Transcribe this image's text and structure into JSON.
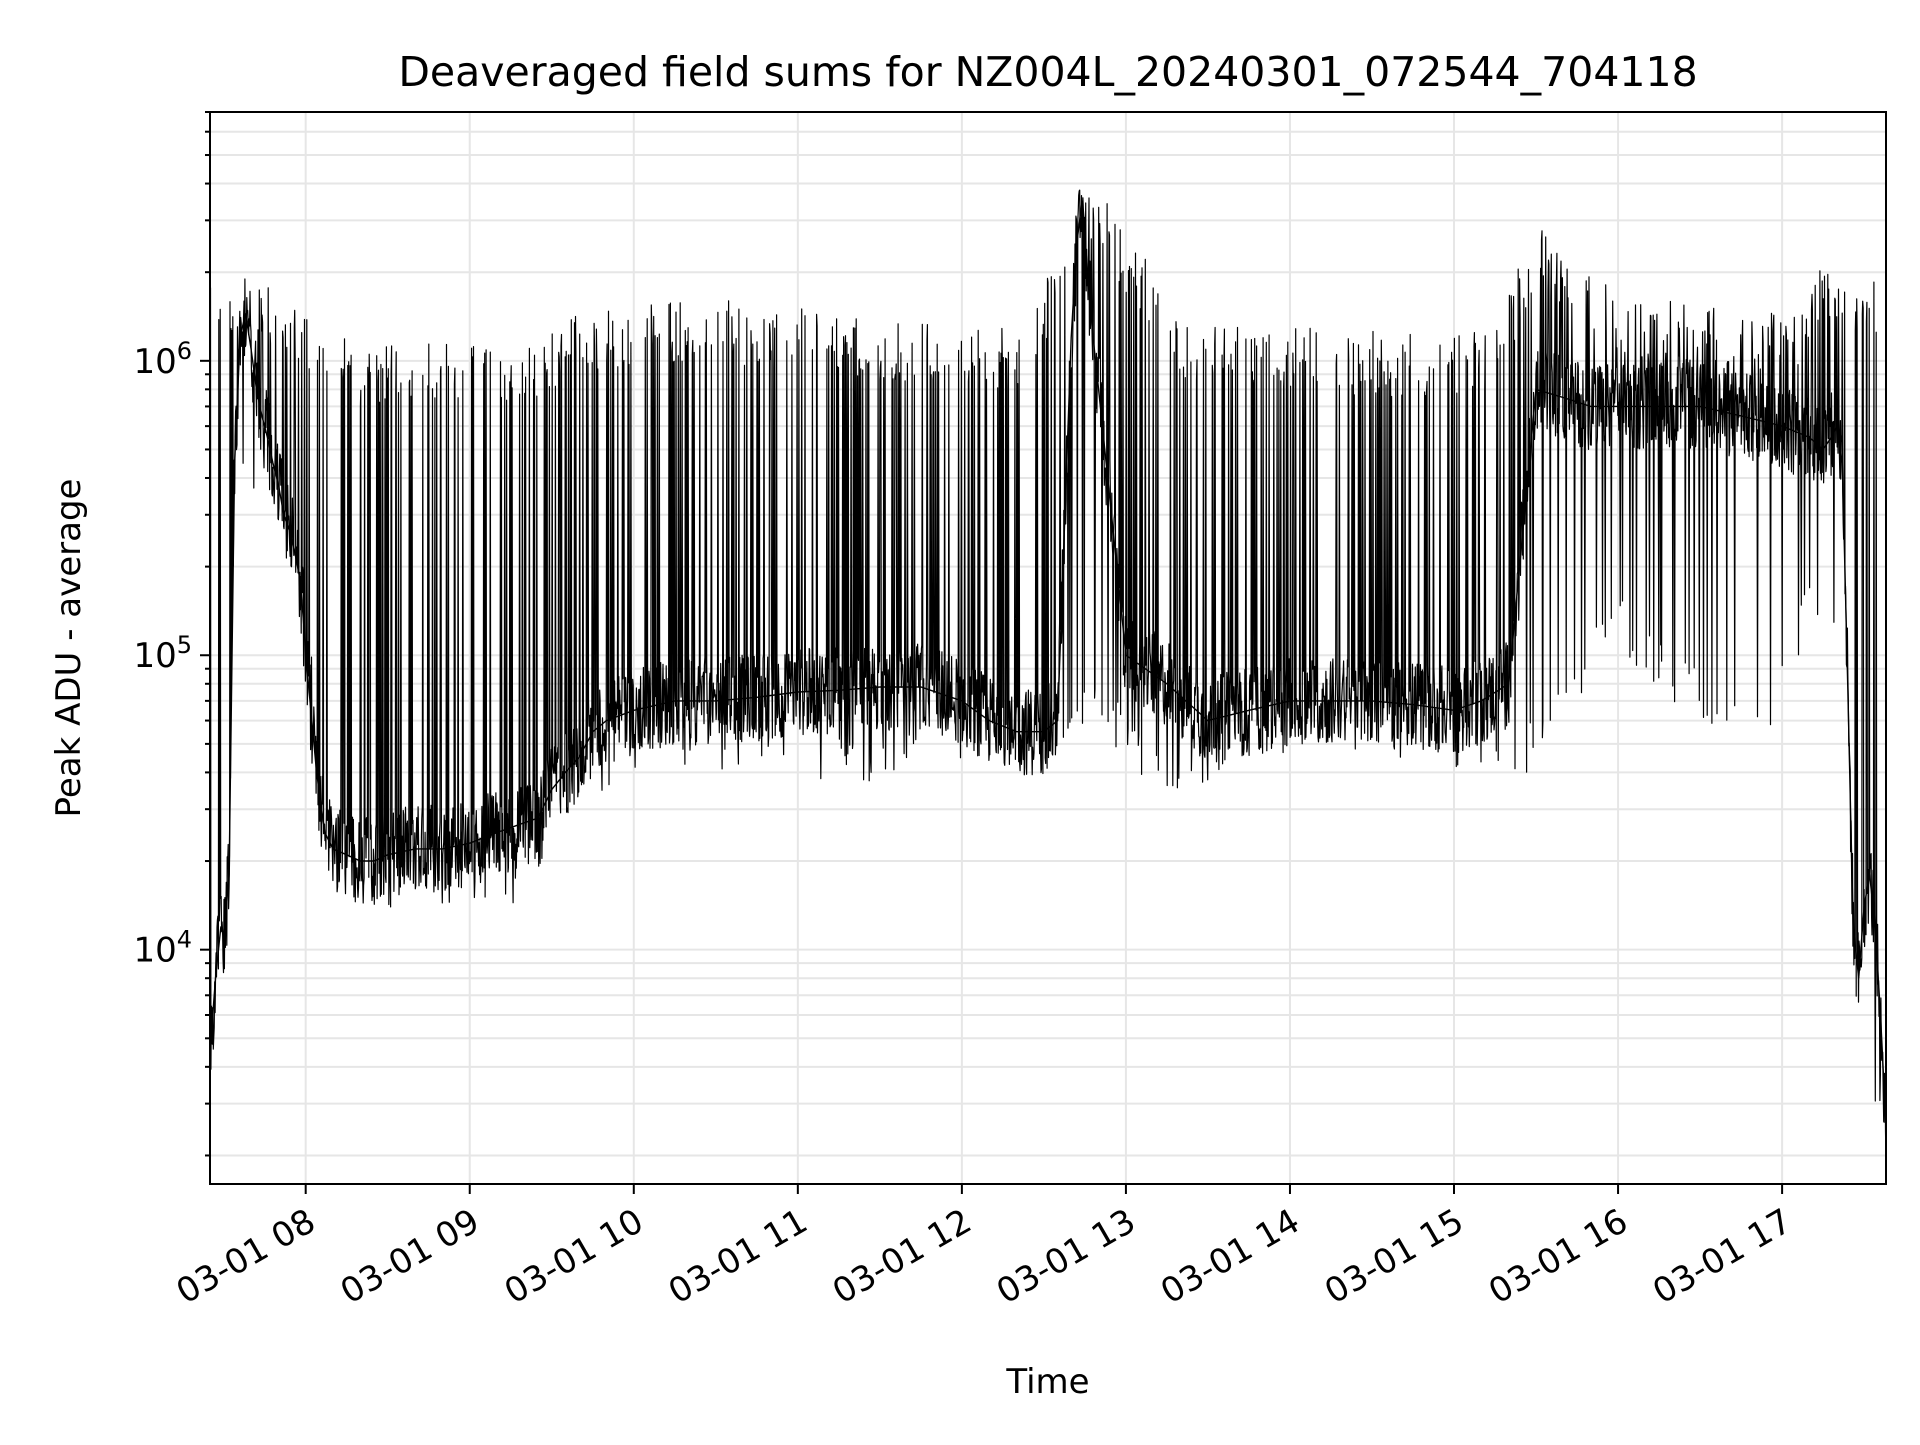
{
  "chart_data": {
    "type": "line",
    "title": "Deaveraged field sums for NZ004L_20240301_072544_704118",
    "xlabel": "Time",
    "ylabel": "Peak ADU - average",
    "y_scale": "log",
    "grid": true,
    "x_range": [
      "2024-03-01 07:25",
      "2024-03-01 17:38"
    ],
    "ylim": [
      1600,
      7000000
    ],
    "x_ticks": [
      "03-01 08",
      "03-01 09",
      "03-01 10",
      "03-01 11",
      "03-01 12",
      "03-01 13",
      "03-01 14",
      "03-01 15",
      "03-01 16",
      "03-01 17"
    ],
    "y_ticks": [
      {
        "value": 10000,
        "base": "10",
        "exp": "4"
      },
      {
        "value": 100000,
        "base": "10",
        "exp": "5"
      },
      {
        "value": 1000000,
        "base": "10",
        "exp": "6"
      }
    ],
    "line_color": "#000000",
    "series": [
      {
        "x": [
          "07:25",
          "07:27",
          "07:29",
          "07:30",
          "07:32",
          "07:34",
          "07:36",
          "07:38",
          "07:40",
          "07:42",
          "07:44",
          "07:46",
          "07:48",
          "07:50",
          "07:52",
          "07:55",
          "07:58",
          "08:01",
          "08:04",
          "08:07",
          "08:10",
          "08:15",
          "08:20",
          "08:25",
          "08:30",
          "08:40",
          "08:50",
          "09:00",
          "09:10",
          "09:20",
          "09:25",
          "09:30",
          "09:35",
          "09:40",
          "09:45",
          "09:50",
          "10:00",
          "10:15",
          "10:30",
          "10:45",
          "11:00",
          "11:15",
          "11:30",
          "11:45",
          "12:00",
          "12:10",
          "12:20",
          "12:30",
          "12:35",
          "12:40",
          "12:42",
          "12:44",
          "12:46",
          "12:48",
          "12:50",
          "13:00",
          "13:15",
          "13:30",
          "13:45",
          "14:00",
          "14:15",
          "14:30",
          "14:45",
          "15:00",
          "15:10",
          "15:20",
          "15:30",
          "15:40",
          "15:50",
          "16:00",
          "16:15",
          "16:30",
          "16:45",
          "17:00",
          "17:10",
          "17:15",
          "17:18",
          "17:20",
          "17:22",
          "17:24",
          "17:26",
          "17:28",
          "17:30",
          "17:32",
          "17:34",
          "17:36",
          "17:38"
        ],
        "y": [
          4500,
          8000,
          12000,
          11000,
          18000,
          450000,
          1200000,
          1450000,
          1100000,
          800000,
          650000,
          550000,
          450000,
          380000,
          300000,
          250000,
          180000,
          80000,
          40000,
          25000,
          22000,
          21000,
          20000,
          20000,
          21000,
          22000,
          22000,
          23000,
          25000,
          27000,
          28000,
          35000,
          40000,
          45000,
          55000,
          60000,
          65000,
          70000,
          70000,
          72000,
          75000,
          76000,
          78000,
          78000,
          70000,
          60000,
          55000,
          55000,
          60000,
          1200000,
          2500000,
          3500000,
          2000000,
          1200000,
          800000,
          100000,
          80000,
          60000,
          65000,
          70000,
          70000,
          70000,
          68000,
          65000,
          70000,
          80000,
          800000,
          750000,
          700000,
          700000,
          700000,
          700000,
          650000,
          600000,
          550000,
          500000,
          550000,
          600000,
          450000,
          80000,
          12000,
          8000,
          14000,
          18000,
          12000,
          6000,
          2500
        ]
      },
      {
        "x": [
          "07:48",
          "08:05",
          "08:20",
          "08:35",
          "08:55",
          "09:15",
          "09:35",
          "10:05",
          "10:40",
          "11:20",
          "12:05",
          "12:25",
          "12:38",
          "12:45",
          "13:25",
          "14:00",
          "14:40",
          "15:15",
          "15:30",
          "15:45",
          "16:05",
          "16:25",
          "16:45",
          "17:05",
          "17:15",
          "17:19"
        ],
        "y": [
          1800000,
          1400000,
          1100000,
          1200000,
          1200000,
          1100000,
          1400000,
          1600000,
          1600000,
          1450000,
          1350000,
          1300000,
          2900000,
          4500000,
          1300000,
          1300000,
          1250000,
          1300000,
          3000000,
          2300000,
          1600000,
          1600000,
          1550000,
          1500000,
          2300000,
          2000000
        ]
      },
      {
        "x": [
          "07:52",
          "08:12",
          "08:18",
          "08:30",
          "08:45",
          "08:58",
          "09:12",
          "09:24",
          "09:40",
          "10:10",
          "10:55",
          "11:20",
          "11:45",
          "12:30",
          "12:52",
          "13:02",
          "13:26",
          "13:50",
          "14:25",
          "15:02",
          "15:22",
          "15:40",
          "16:00",
          "16:20",
          "16:40",
          "16:55",
          "17:12",
          "17:27",
          "17:33",
          "17:37"
        ],
        "y": [
          330000,
          16000,
          13500,
          12000,
          15000,
          13500,
          14000,
          13500,
          30000,
          40000,
          42000,
          35000,
          45000,
          40000,
          55000,
          37000,
          34000,
          45000,
          48000,
          40000,
          34000,
          60000,
          100000,
          70000,
          50000,
          45000,
          140000,
          80000,
          3400,
          2200
        ]
      }
    ]
  }
}
